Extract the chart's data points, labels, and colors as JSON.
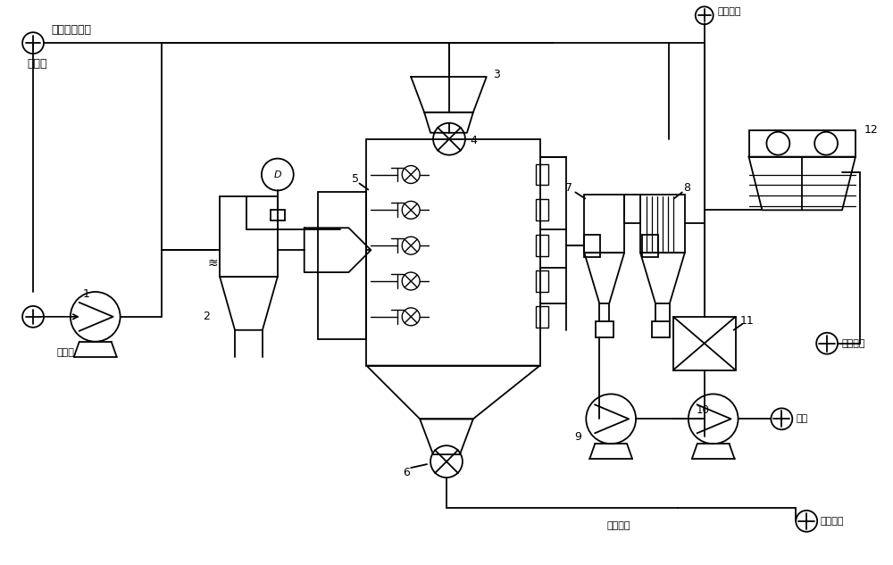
{
  "bg_color": "#ffffff",
  "lc": "#000000",
  "lw": 1.3,
  "labels": {
    "top_left_title": "来自焖焦工段",
    "top_left_sub": "湿兰炭",
    "fuel_gas": "荒煤气",
    "vent": "不凝排空",
    "condensate": "凝液收集",
    "air": "空气",
    "product": "兰炭产品",
    "to_warehouse": "去兰炭仓"
  }
}
